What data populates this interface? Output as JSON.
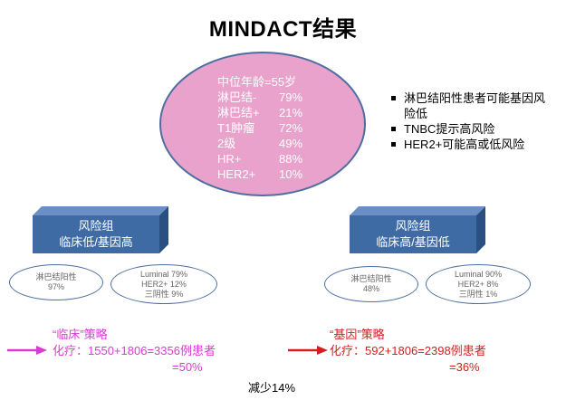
{
  "title": "MINDACT结果",
  "ellipse_stats": {
    "line1": "中位年龄=55岁",
    "rows": [
      {
        "label": "淋巴结-",
        "value": "79%"
      },
      {
        "label": "淋巴结+",
        "value": "21%"
      },
      {
        "label": "T1肿瘤",
        "value": "72%"
      },
      {
        "label": "2级",
        "value": "49%"
      },
      {
        "label": "HR+",
        "value": "88%"
      },
      {
        "label": "HER2+",
        "value": "10%"
      }
    ]
  },
  "bullets": [
    "淋巴结阳性患者可能基因风险低",
    "TNBC提示高风险",
    "HER2+可能高或低风险"
  ],
  "left_group": {
    "box_line1": "风险组",
    "box_line2": "临床低/基因高",
    "ellipse1": {
      "line1": "淋巴结阳性",
      "line2": "97%"
    },
    "ellipse2": {
      "line1": "Luminal 79%",
      "line2": "HER2+ 12%",
      "line3": "三阴性  9%"
    }
  },
  "right_group": {
    "box_line1": "风险组",
    "box_line2": "临床高/基因低",
    "ellipse1": {
      "line1": "淋巴结阳性",
      "line2": "48%"
    },
    "ellipse2": {
      "line1": "Luminal 90%",
      "line2": "HER2+ 8%",
      "line3": "三阴性  1%"
    }
  },
  "left_strategy": {
    "heading": "“临床”策略",
    "line": "化疗：1550+1806=3356例患者",
    "result": "=50%"
  },
  "right_strategy": {
    "heading": "“基因”策略",
    "line": "化疗：592+1806=2398例患者",
    "result": "=36%"
  },
  "footer": "减少14%",
  "colors": {
    "ellipse_fill": "#e9a2cb",
    "box_blue": "#3f6ba5",
    "outline": "#4c6fa0",
    "clinical_pink": "#d83bd3",
    "genomic_red": "#d41e1e"
  }
}
